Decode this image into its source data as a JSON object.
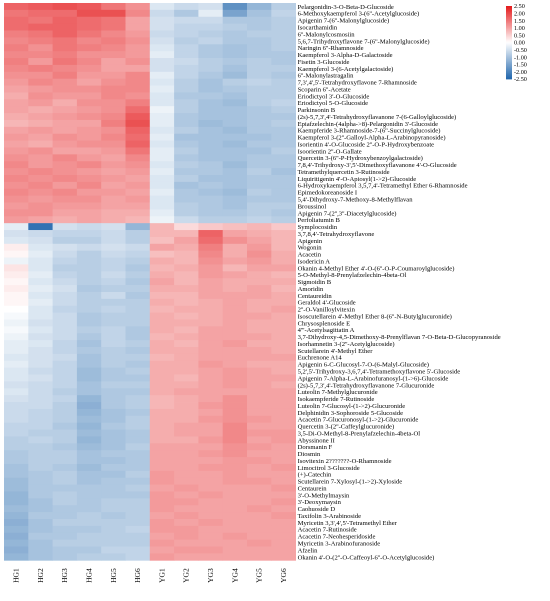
{
  "chart_data": {
    "type": "heatmap",
    "title": "",
    "xlabel": "",
    "ylabel": "",
    "columns": [
      "HG1",
      "HG2",
      "HG3",
      "HG4",
      "HG5",
      "HG6",
      "YG1",
      "YG2",
      "YG3",
      "YG4",
      "YG5",
      "YG6"
    ],
    "rows": [
      "Pelargonidin-3-O-Beta-D-Glucoside",
      "6-Methoxykaempferol 3-(6''-Acetylglucoside)",
      "Apigenin 7-(6''-Malonylglucoside)",
      "Isocarthamidin",
      "6''-Malonylcosmosiin",
      "5,6,7-Trihydroxyflavone 7-(6''-Malonylglucoside)",
      "Naringin 6''-Rhamnoside",
      "Kaempferol 3-Alpha-D-Galactoside",
      "Fisetin 3-Glucoside",
      "Kaempferol 3-(6-Acetylgalactoside)",
      "6''-Malonylastragalin",
      "7,3',4',5'-Tetrahydroxyflavone 7-Rhamnoside",
      "Scoparin 6''-Acetate",
      "Eriodictyol 3'-O-Glucoside",
      "Eriodictyol 5-O-Glucoside",
      "Parkinsonin B",
      "(2s)-5,7,3',4'-Tetrahydroxyflavanone 7-(6-Galloylglucoside)",
      "Epiafzelechin-(4alpha->8)-Pelargonidin 3'-Glucoside",
      "Kaempferide 3-Rhamnoside-7-(6''-Succinylglucoside)",
      "Kaempferol 3-(2''-Galloyl-Alpha-L-Arabinopyranoside)",
      "Isorientin 4'-O-Glucoside 2''-O-P-Hydroxybenzoate",
      "Isoorientin 2''-O-Gallate",
      "Quercetin 3-(6''-P-Hydroxybenzoylgalactoside)",
      "7,8,4'-Trihydroxy-3',5'-Dimethoxyflavanone 4'-O-Glucoside",
      "Tetramethylquercetin 3-Rutinoside",
      "Liquiritigenin 4'-O-Apiosyl(1->2)-Glucoside",
      "6-Hydroxykaempferol 3,5,7,4'-Tetramethyl Ether 6-Rhamnoside",
      "Epimedokoreanoside I",
      "5,4'-Dihydroxy-7-Methoxy-8-Methylflavan",
      "Broussinol",
      "Apigenin 7-(2'',3''-Diacetylglucoside)",
      "Perfoliatumin B",
      "Symplocosidin",
      "3,7,8,4'-Tetrahydroxyflavone",
      "Apigenin",
      "Wogonin",
      "Acacetin",
      "Isodericin A",
      "Okanin 4-Methyl Ether 4'-O-(6''-O-P-Coumaroylglucoside)",
      "5-O-Methyl-8-Prenylafzelechin-4beta-Ol",
      "Sigmoidin B",
      "Amoridin",
      "Centaureidin",
      "Geraldol 4'-Glucoside",
      "2''-O-Vanilloylvitexin",
      "Isoscutellarein 4'-Methyl Ether 8-(6''-N-Butylglucuronide)",
      "Chrysosplenoside E",
      "4'''-Acetylsagittatin A",
      "3,7-Dihydroxy-4,5-Dimethoxy-8-Prenylflavan 7-O-Beta-D-Glucopyranoside",
      "Isorhamnetin 3-(2''-Acetylglucoside)",
      "Scutellarein 4'-Methyl Ether",
      "Euchrenone A14",
      "Apigenin 6-C-Glucosyl-7-O-(6-Malyl-Glucoside)",
      "5,2',5'-Trihydroxy-3,6,7,4'-Tetramethoxyflavone 5'-Glucoside",
      "Apigenin 7-Alpha-L-Arabinofuranosyl-(1->6)-Glucoside",
      "(2s)-5,7,3',4'-Tetrahydroxyflavanone 7-Glucuronide",
      "Luteolin 7-Methylglucuronide",
      "Isokaempferide 7-Rutinoside",
      "Luteolin 7-Glucosyl-(1->2)-Glucuronide",
      "Delphinidin 3-Sophoroside 5-Glucoside",
      "Acacetin 7-Glucuronosyl-(1->2)-Glucuronide",
      "Quercetin 3-(2''-Caffeylglucuronide)",
      "3,5-Di-O-Methyl-8-Prenylafzelechin-4beta-Ol",
      "Abyssinone II",
      "Dorsmanin F",
      "Diosmin",
      "Isovitexin 2???????-O-Rhamnoside",
      "Limocitrol 3-Glucoside",
      "(+)-Catechin",
      "Scutellarein 7-Xylosyl-(1->2)-Xyloside",
      "Centaurein",
      "3'-O-Methylmaysin",
      "3'-Deoxymaysin",
      "Caohuoside D",
      "Taxifolin 3-Arabinoside",
      "Myricetin 3,3',4',5'-Tetramethyl Ether",
      "Acacetin 7-Rutinoside",
      "Acacetin 7-Neohesperidoside",
      "Myricetin 3-Arabinofuranoside",
      "Afzelin",
      "Okanin 4'-O-(2''-O-Caffeoyl-6''-O-Acetylglucoside)"
    ],
    "cluster_boundary_row": 32,
    "values_note": "",
    "values": [
      [
        1.7,
        1.8,
        1.9,
        1.8,
        1.5,
        1.2,
        -0.4,
        -0.6,
        -0.5,
        -1.8,
        -1.2,
        -0.8
      ],
      [
        1.5,
        1.6,
        1.6,
        1.9,
        1.9,
        1.3,
        -0.6,
        -0.9,
        -0.3,
        -1.5,
        -1.0,
        -0.7
      ],
      [
        1.6,
        1.5,
        1.7,
        1.6,
        1.5,
        1.0,
        -0.5,
        -0.6,
        -0.6,
        -0.9,
        -0.9,
        -0.8
      ],
      [
        1.6,
        1.7,
        1.7,
        1.6,
        1.5,
        1.0,
        -0.5,
        -0.7,
        -0.7,
        -0.8,
        -0.9,
        -0.8
      ],
      [
        1.4,
        1.5,
        1.7,
        1.5,
        1.3,
        1.1,
        -0.6,
        -0.7,
        -0.8,
        -0.9,
        -0.8,
        -0.8
      ],
      [
        1.3,
        1.4,
        1.5,
        1.3,
        1.4,
        1.2,
        -0.5,
        -0.8,
        -0.7,
        -0.9,
        -0.9,
        -0.8
      ],
      [
        1.4,
        1.2,
        1.5,
        1.4,
        1.3,
        1.1,
        -0.4,
        -0.7,
        -0.9,
        -1.0,
        -0.9,
        -0.8
      ],
      [
        1.3,
        1.3,
        1.4,
        1.2,
        1.2,
        1.1,
        -0.3,
        -0.7,
        -0.9,
        -1.0,
        -0.9,
        -0.9
      ],
      [
        1.4,
        1.1,
        1.5,
        1.3,
        1.0,
        1.2,
        -0.5,
        -0.6,
        -0.8,
        -0.9,
        -0.8,
        -0.9
      ],
      [
        1.3,
        1.4,
        1.3,
        1.2,
        1.0,
        1.0,
        -0.5,
        -0.7,
        -0.8,
        -1.0,
        -0.8,
        -0.8
      ],
      [
        1.2,
        1.2,
        1.4,
        1.1,
        1.1,
        1.3,
        -0.3,
        -0.7,
        -0.9,
        -1.1,
        -0.8,
        -0.9
      ],
      [
        1.1,
        1.3,
        1.2,
        1.0,
        1.2,
        1.3,
        -0.4,
        -0.8,
        -1.0,
        -0.8,
        -0.7,
        -0.8
      ],
      [
        1.0,
        1.1,
        1.2,
        1.2,
        1.3,
        1.3,
        -0.3,
        -0.8,
        -1.0,
        -0.9,
        -0.8,
        -0.8
      ],
      [
        0.9,
        1.2,
        1.1,
        1.1,
        1.3,
        1.2,
        -0.4,
        -0.9,
        -0.9,
        -1.0,
        -0.8,
        -0.8
      ],
      [
        1.0,
        1.1,
        0.9,
        1.2,
        1.2,
        1.4,
        -0.4,
        -0.8,
        -1.0,
        -1.1,
        -0.8,
        -0.7
      ],
      [
        1.0,
        0.9,
        1.0,
        1.1,
        1.2,
        1.6,
        -0.2,
        -0.8,
        -1.0,
        -1.0,
        -0.9,
        -0.8
      ],
      [
        0.9,
        1.0,
        1.1,
        1.2,
        1.3,
        1.8,
        -0.3,
        -0.9,
        -1.0,
        -1.0,
        -0.9,
        -0.9
      ],
      [
        0.8,
        0.9,
        1.0,
        1.0,
        1.4,
        1.9,
        -0.3,
        -0.9,
        -1.1,
        -1.0,
        -0.9,
        -0.8
      ],
      [
        1.0,
        1.1,
        1.0,
        1.1,
        1.2,
        1.7,
        -0.4,
        -0.8,
        -1.0,
        -1.1,
        -0.9,
        -0.9
      ],
      [
        1.1,
        1.0,
        1.2,
        1.1,
        1.3,
        1.6,
        -0.3,
        -1.0,
        -1.0,
        -1.0,
        -1.0,
        -0.9
      ],
      [
        1.0,
        0.9,
        1.1,
        1.2,
        1.2,
        1.7,
        -0.4,
        -0.9,
        -1.0,
        -1.1,
        -0.9,
        -0.9
      ],
      [
        1.1,
        1.2,
        1.0,
        1.0,
        1.1,
        1.5,
        -0.3,
        -0.8,
        -1.0,
        -1.0,
        -1.0,
        -0.8
      ],
      [
        1.2,
        1.1,
        1.3,
        1.1,
        1.0,
        1.3,
        -0.3,
        -0.9,
        -1.0,
        -1.0,
        -0.9,
        -0.9
      ],
      [
        1.3,
        1.1,
        1.2,
        1.3,
        1.1,
        1.2,
        -0.4,
        -0.8,
        -0.9,
        -1.1,
        -0.9,
        -0.9
      ],
      [
        1.2,
        1.3,
        1.2,
        1.1,
        1.0,
        1.1,
        -0.3,
        -0.9,
        -0.9,
        -1.0,
        -0.8,
        -1.0
      ],
      [
        1.3,
        1.2,
        1.3,
        1.2,
        1.1,
        1.0,
        -0.4,
        -0.8,
        -1.0,
        -1.0,
        -0.9,
        -0.9
      ],
      [
        1.2,
        1.3,
        1.1,
        1.3,
        1.0,
        1.1,
        -0.4,
        -1.0,
        -0.9,
        -1.0,
        -0.9,
        -0.9
      ],
      [
        1.3,
        1.2,
        1.3,
        1.1,
        1.1,
        1.0,
        -0.3,
        -0.9,
        -1.0,
        -1.1,
        -0.8,
        -0.9
      ],
      [
        1.2,
        1.1,
        1.2,
        1.2,
        1.0,
        1.1,
        -0.4,
        -0.9,
        -0.9,
        -1.0,
        -0.9,
        -0.9
      ],
      [
        1.1,
        1.2,
        1.1,
        1.1,
        1.0,
        1.0,
        -0.4,
        -0.8,
        -0.9,
        -1.0,
        -0.8,
        -0.8
      ],
      [
        1.2,
        1.2,
        1.0,
        1.0,
        0.9,
        0.9,
        -0.3,
        -0.8,
        -0.9,
        -0.9,
        -0.8,
        -0.9
      ],
      [
        1.1,
        1.0,
        0.9,
        1.0,
        0.9,
        0.8,
        -0.2,
        -0.6,
        -0.8,
        -0.8,
        -0.7,
        -0.8
      ],
      [
        -0.3,
        -2.3,
        -0.5,
        -0.6,
        -0.5,
        -1.2,
        0.8,
        0.4,
        0.6,
        0.7,
        0.8,
        0.6
      ],
      [
        -0.5,
        -0.6,
        -0.7,
        -0.7,
        -0.6,
        -0.8,
        0.8,
        0.8,
        1.7,
        1.0,
        0.9,
        0.8
      ],
      [
        -0.4,
        -0.5,
        -0.8,
        -0.8,
        -0.6,
        -0.8,
        0.7,
        1.0,
        1.6,
        1.2,
        1.0,
        0.8
      ],
      [
        0.2,
        -0.4,
        -0.5,
        -0.6,
        -0.5,
        -0.6,
        1.0,
        0.9,
        1.4,
        0.9,
        1.1,
        0.8
      ],
      [
        0.1,
        -0.3,
        -0.6,
        -0.8,
        -0.6,
        -0.7,
        0.7,
        0.8,
        1.3,
        0.9,
        1.2,
        0.9
      ],
      [
        -0.2,
        -0.4,
        -0.7,
        -0.8,
        -0.7,
        -0.8,
        0.9,
        0.8,
        1.2,
        1.0,
        1.1,
        0.9
      ],
      [
        0.3,
        -0.4,
        -0.8,
        -0.8,
        -0.7,
        -0.9,
        0.8,
        0.9,
        1.1,
        0.8,
        1.0,
        1.0
      ],
      [
        0.2,
        -0.3,
        -0.7,
        -0.8,
        -0.6,
        -0.8,
        0.9,
        0.8,
        1.1,
        1.0,
        0.9,
        0.8
      ],
      [
        0.1,
        -0.4,
        -0.6,
        -0.8,
        -0.7,
        -0.9,
        1.0,
        0.8,
        1.0,
        0.9,
        0.9,
        0.9
      ],
      [
        0.2,
        -0.3,
        -0.5,
        -0.9,
        -0.8,
        -0.8,
        0.9,
        0.9,
        1.0,
        0.9,
        1.0,
        0.8
      ],
      [
        0.1,
        -0.4,
        -0.6,
        -0.8,
        -0.6,
        -0.9,
        0.8,
        0.8,
        1.0,
        1.0,
        1.0,
        0.9
      ],
      [
        0.1,
        -0.3,
        -0.6,
        -0.8,
        -0.8,
        -0.8,
        0.9,
        0.8,
        0.9,
        1.0,
        0.9,
        0.9
      ],
      [
        0.0,
        -0.4,
        -0.7,
        -0.8,
        -0.7,
        -0.8,
        0.8,
        0.9,
        0.9,
        1.0,
        0.9,
        1.0
      ],
      [
        -0.1,
        -0.4,
        -0.6,
        -0.9,
        -0.8,
        -0.8,
        0.9,
        0.8,
        0.9,
        1.0,
        1.0,
        0.9
      ],
      [
        -0.2,
        -0.5,
        -0.6,
        -0.9,
        -0.8,
        -0.8,
        0.9,
        0.9,
        0.9,
        1.0,
        0.9,
        0.9
      ],
      [
        -0.1,
        -0.4,
        -0.6,
        -0.8,
        -0.7,
        -0.9,
        0.9,
        0.8,
        1.0,
        1.0,
        0.9,
        0.9
      ],
      [
        -0.2,
        -0.5,
        -0.6,
        -0.9,
        -0.7,
        -0.9,
        0.8,
        0.9,
        1.0,
        1.0,
        1.0,
        0.9
      ],
      [
        -0.3,
        -0.4,
        -0.7,
        -1.0,
        -0.7,
        -0.8,
        0.9,
        0.8,
        1.0,
        1.1,
        0.9,
        0.9
      ],
      [
        -0.3,
        -0.5,
        -0.7,
        -0.9,
        -0.8,
        -0.9,
        0.9,
        0.9,
        1.0,
        1.0,
        1.0,
        0.9
      ],
      [
        -0.4,
        -0.5,
        -0.6,
        -1.0,
        -0.8,
        -0.8,
        0.8,
        0.9,
        1.0,
        1.0,
        1.0,
        1.0
      ],
      [
        -0.3,
        -0.5,
        -0.7,
        -1.0,
        -0.8,
        -0.9,
        0.9,
        0.9,
        1.1,
        1.0,
        0.9,
        0.9
      ],
      [
        -0.4,
        -0.6,
        -0.7,
        -1.1,
        -0.9,
        -0.8,
        0.9,
        0.9,
        1.0,
        1.1,
        1.0,
        0.9
      ],
      [
        -0.4,
        -0.5,
        -0.7,
        -1.1,
        -0.9,
        -0.9,
        0.9,
        0.8,
        1.0,
        1.1,
        1.0,
        1.0
      ],
      [
        -0.5,
        -0.6,
        -0.7,
        -1.0,
        -0.8,
        -0.8,
        0.9,
        0.9,
        1.0,
        1.1,
        1.0,
        0.9
      ],
      [
        -0.4,
        -0.6,
        -0.8,
        -1.0,
        -0.9,
        -0.9,
        0.9,
        1.0,
        1.0,
        1.0,
        1.0,
        1.0
      ],
      [
        -0.5,
        -0.6,
        -0.7,
        -1.2,
        -0.9,
        -0.8,
        0.8,
        0.9,
        1.0,
        1.2,
        1.0,
        1.0
      ],
      [
        -0.6,
        -0.6,
        -0.8,
        -1.3,
        -0.9,
        -0.8,
        0.8,
        0.9,
        1.1,
        1.2,
        1.0,
        1.0
      ],
      [
        -0.6,
        -0.7,
        -0.8,
        -1.2,
        -1.0,
        -0.9,
        0.9,
        0.9,
        1.0,
        1.2,
        1.0,
        1.0
      ],
      [
        -0.6,
        -0.7,
        -0.8,
        -1.1,
        -1.0,
        -0.8,
        0.9,
        0.9,
        1.1,
        1.2,
        1.1,
        1.0
      ],
      [
        -0.7,
        -0.7,
        -0.9,
        -1.2,
        -0.9,
        -0.8,
        0.9,
        1.0,
        1.0,
        1.3,
        1.0,
        1.0
      ],
      [
        -0.7,
        -0.8,
        -0.8,
        -1.1,
        -1.0,
        -0.9,
        0.9,
        1.0,
        1.0,
        1.3,
        1.1,
        1.1
      ],
      [
        -0.8,
        -0.7,
        -0.8,
        -1.2,
        -1.0,
        -0.9,
        0.9,
        0.9,
        1.1,
        1.3,
        1.0,
        1.1
      ],
      [
        -0.8,
        -0.8,
        -0.9,
        -1.1,
        -1.0,
        -0.8,
        1.0,
        1.0,
        1.0,
        1.2,
        1.1,
        1.0
      ],
      [
        -0.9,
        -0.8,
        -0.8,
        -1.0,
        -0.9,
        -0.9,
        1.0,
        1.0,
        1.1,
        1.2,
        1.0,
        1.0
      ],
      [
        -0.9,
        -0.8,
        -0.8,
        -1.0,
        -1.0,
        -0.9,
        1.0,
        1.0,
        1.0,
        1.1,
        1.1,
        1.0
      ],
      [
        -1.0,
        -0.8,
        -0.9,
        -1.1,
        -0.9,
        -0.9,
        1.0,
        1.0,
        1.1,
        1.1,
        1.0,
        1.1
      ],
      [
        -1.0,
        -0.9,
        -0.8,
        -1.0,
        -1.0,
        -0.8,
        1.1,
        1.0,
        1.0,
        1.1,
        1.0,
        1.0
      ],
      [
        -1.1,
        -0.9,
        -0.8,
        -1.0,
        -0.9,
        -0.9,
        1.1,
        1.0,
        1.0,
        1.1,
        1.1,
        1.0
      ],
      [
        -1.1,
        -0.9,
        -0.9,
        -0.9,
        -0.9,
        -0.8,
        1.0,
        1.1,
        1.0,
        1.0,
        1.0,
        1.1
      ],
      [
        -1.2,
        -0.9,
        -0.8,
        -0.9,
        -0.9,
        -0.9,
        1.1,
        1.0,
        1.1,
        1.0,
        1.0,
        1.0
      ],
      [
        -1.2,
        -1.0,
        -0.8,
        -0.9,
        -0.8,
        -0.8,
        1.1,
        1.1,
        1.0,
        1.0,
        1.0,
        1.1
      ],
      [
        -1.1,
        -1.0,
        -0.9,
        -0.9,
        -0.8,
        -0.8,
        1.1,
        1.0,
        1.0,
        1.0,
        1.1,
        1.0
      ],
      [
        -1.2,
        -0.9,
        -0.9,
        -0.8,
        -0.9,
        -0.8,
        1.0,
        1.1,
        1.0,
        1.0,
        1.0,
        1.1
      ],
      [
        -1.3,
        -1.0,
        -0.8,
        -0.8,
        -0.8,
        -0.8,
        1.1,
        1.0,
        1.1,
        1.0,
        1.0,
        1.0
      ],
      [
        -1.2,
        -1.0,
        -0.9,
        -0.9,
        -0.8,
        -0.7,
        1.1,
        1.1,
        1.0,
        1.0,
        1.0,
        1.0
      ],
      [
        -1.3,
        -0.9,
        -0.9,
        -0.8,
        -0.8,
        -0.8,
        1.0,
        1.1,
        1.0,
        1.1,
        1.0,
        1.0
      ],
      [
        -1.2,
        -1.0,
        -0.8,
        -0.8,
        -0.8,
        -0.8,
        1.1,
        1.0,
        1.0,
        1.0,
        1.1,
        1.0
      ],
      [
        -1.3,
        -1.0,
        -0.9,
        -0.9,
        -0.7,
        -0.7,
        1.0,
        1.1,
        1.1,
        1.0,
        1.0,
        1.0
      ],
      [
        -1.2,
        -1.0,
        -0.9,
        -0.8,
        -0.8,
        -0.7,
        1.1,
        1.0,
        1.0,
        1.0,
        1.0,
        1.0
      ]
    ],
    "color_scale": {
      "ticks": [
        "2.50",
        "2.00",
        "1.50",
        "1.00",
        "0.50",
        "0.00",
        "-0.50",
        "-1.00",
        "-1.50",
        "-2.00",
        "-2.50"
      ],
      "min": -2.5,
      "max": 2.5,
      "colors": {
        "low": "#2166ac",
        "mid": "#ffffff",
        "high": "#e41a1c"
      }
    },
    "legend_position": "top-right",
    "grid": false
  }
}
